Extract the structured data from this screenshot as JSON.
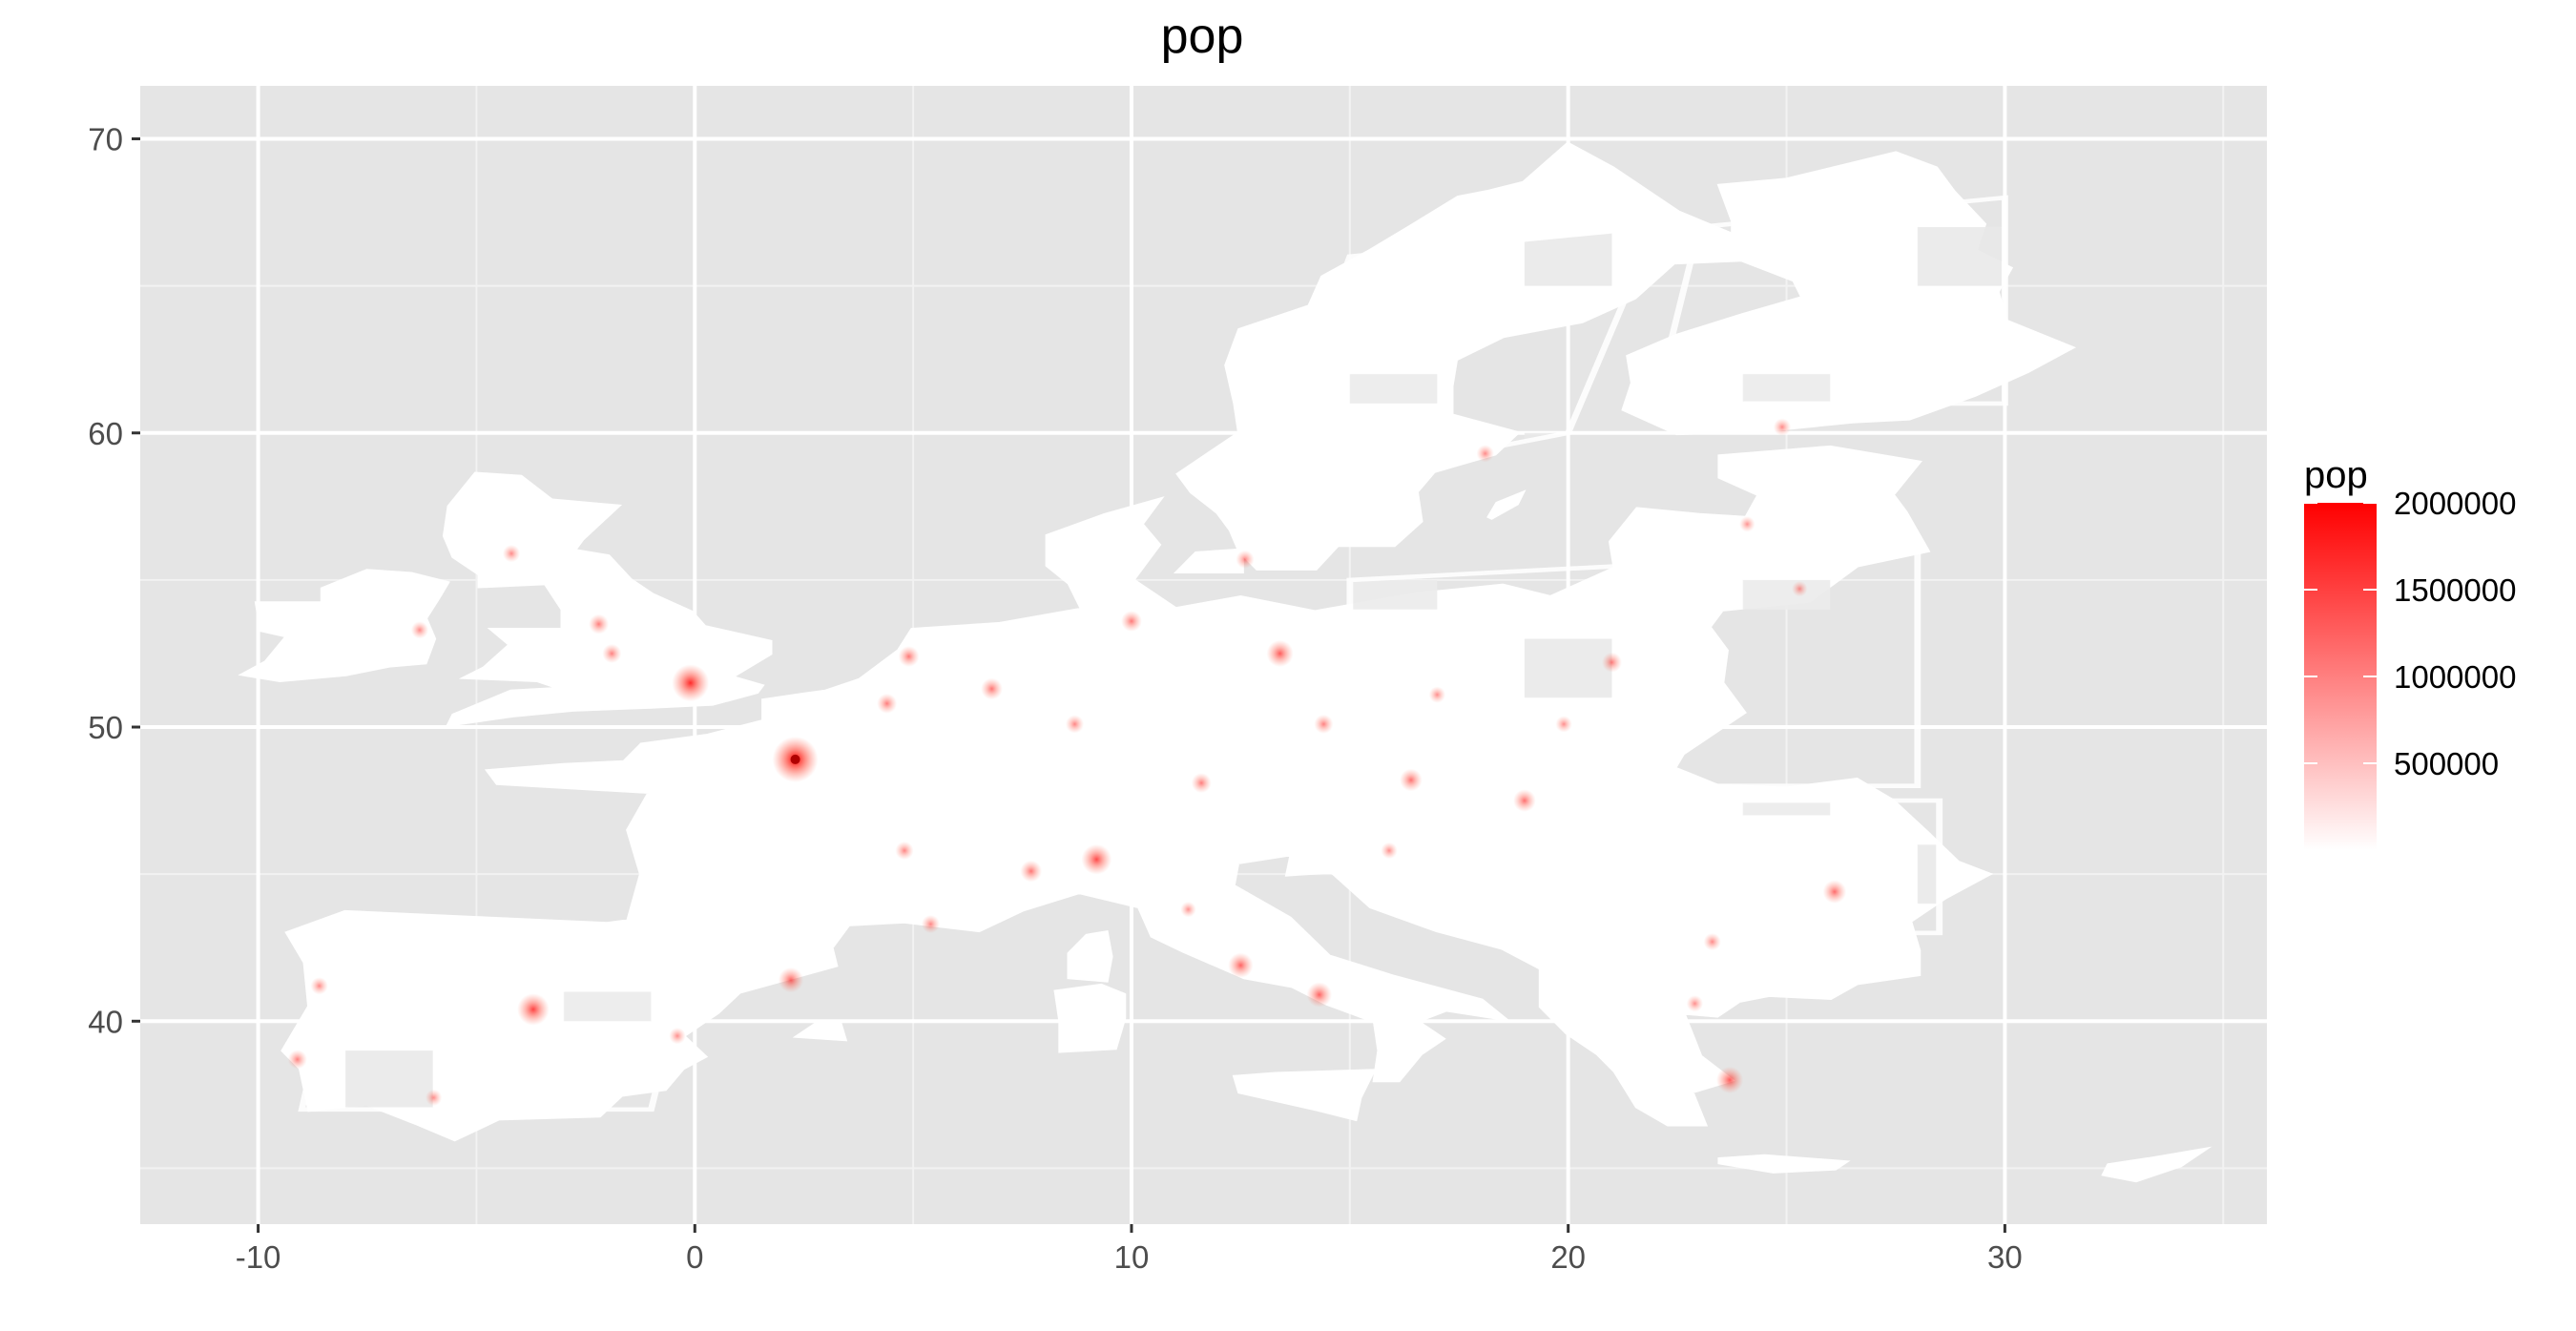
{
  "title": "pop",
  "legend": {
    "title": "pop",
    "breaks": [
      "2000000",
      "1500000",
      "1000000",
      "500000"
    ],
    "break_values": [
      2000000,
      1500000,
      1000000,
      500000
    ],
    "range": [
      0,
      2000000
    ],
    "low_color": "#ffffff",
    "high_color": "#ff0000"
  },
  "colors": {
    "panel": "#e5e5e5",
    "grid": "#ffffff",
    "land": "#ffffff",
    "hotspot": "#ff0000"
  },
  "chart_data": {
    "type": "heatmap",
    "title": "pop",
    "xlabel": "",
    "ylabel": "",
    "xlim": [
      -12.7,
      36.0
    ],
    "ylim": [
      33.1,
      71.8
    ],
    "x_ticks": [
      -10,
      0,
      10,
      20,
      30
    ],
    "x_tick_labels": [
      "-10",
      "0",
      "10",
      "20",
      "30"
    ],
    "y_ticks": [
      40,
      50,
      60,
      70
    ],
    "y_tick_labels": [
      "40",
      "50",
      "60",
      "70"
    ],
    "fill_scale": {
      "name": "pop",
      "low": "#ffffff",
      "high": "#ff0000",
      "limits": [
        0,
        2000000
      ]
    },
    "hotspots": [
      {
        "lon": 2.3,
        "lat": 48.9,
        "value": 2000000
      },
      {
        "lon": -0.1,
        "lat": 51.5,
        "value": 1500000
      },
      {
        "lon": -3.7,
        "lat": 40.4,
        "value": 1200000
      },
      {
        "lon": 9.2,
        "lat": 45.5,
        "value": 1100000
      },
      {
        "lon": 13.4,
        "lat": 52.5,
        "value": 900000
      },
      {
        "lon": 23.7,
        "lat": 38.0,
        "value": 900000
      },
      {
        "lon": 2.2,
        "lat": 41.4,
        "value": 800000
      },
      {
        "lon": 12.5,
        "lat": 41.9,
        "value": 800000
      },
      {
        "lon": 14.3,
        "lat": 40.9,
        "value": 800000
      },
      {
        "lon": 26.1,
        "lat": 44.4,
        "value": 700000
      },
      {
        "lon": 16.4,
        "lat": 48.2,
        "value": 650000
      },
      {
        "lon": 19.0,
        "lat": 47.5,
        "value": 650000
      },
      {
        "lon": 7.7,
        "lat": 45.1,
        "value": 600000
      },
      {
        "lon": 4.9,
        "lat": 52.4,
        "value": 550000
      },
      {
        "lon": 21.0,
        "lat": 52.2,
        "value": 500000
      },
      {
        "lon": 4.4,
        "lat": 50.8,
        "value": 500000
      },
      {
        "lon": 6.8,
        "lat": 51.3,
        "value": 600000
      },
      {
        "lon": 10.0,
        "lat": 53.6,
        "value": 550000
      },
      {
        "lon": 11.6,
        "lat": 48.1,
        "value": 500000
      },
      {
        "lon": -2.2,
        "lat": 53.5,
        "value": 500000
      },
      {
        "lon": -1.9,
        "lat": 52.5,
        "value": 450000
      },
      {
        "lon": -9.1,
        "lat": 38.7,
        "value": 450000
      },
      {
        "lon": -8.6,
        "lat": 41.2,
        "value": 350000
      },
      {
        "lon": 14.4,
        "lat": 50.1,
        "value": 450000
      },
      {
        "lon": 5.4,
        "lat": 43.3,
        "value": 400000
      },
      {
        "lon": 4.8,
        "lat": 45.8,
        "value": 400000
      },
      {
        "lon": 8.7,
        "lat": 50.1,
        "value": 400000
      },
      {
        "lon": 12.6,
        "lat": 55.7,
        "value": 400000
      },
      {
        "lon": 18.1,
        "lat": 59.3,
        "value": 350000
      },
      {
        "lon": 24.9,
        "lat": 60.2,
        "value": 350000
      },
      {
        "lon": 23.3,
        "lat": 42.7,
        "value": 350000
      },
      {
        "lon": 22.9,
        "lat": 40.6,
        "value": 300000
      },
      {
        "lon": 17.0,
        "lat": 51.1,
        "value": 300000
      },
      {
        "lon": 19.9,
        "lat": 50.1,
        "value": 300000
      },
      {
        "lon": 15.9,
        "lat": 45.8,
        "value": 300000
      },
      {
        "lon": -6.3,
        "lat": 53.3,
        "value": 350000
      },
      {
        "lon": -4.2,
        "lat": 55.9,
        "value": 350000
      },
      {
        "lon": -0.4,
        "lat": 39.5,
        "value": 300000
      },
      {
        "lon": -5.98,
        "lat": 37.4,
        "value": 300000
      },
      {
        "lon": 11.3,
        "lat": 43.8,
        "value": 250000
      },
      {
        "lon": 25.3,
        "lat": 54.7,
        "value": 250000
      },
      {
        "lon": 24.1,
        "lat": 56.9,
        "value": 250000
      }
    ]
  }
}
